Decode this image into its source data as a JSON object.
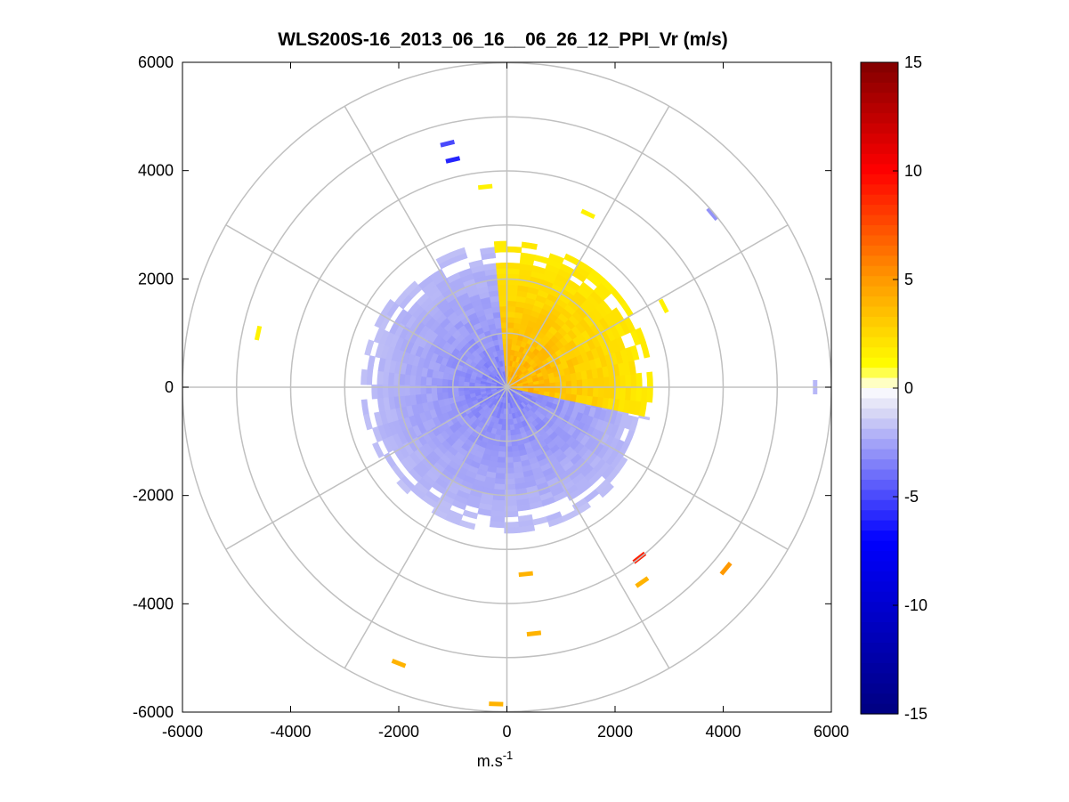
{
  "chart_data": {
    "type": "heatmap",
    "subtype": "polar-ppi",
    "title": "WLS200S-16_2013_06_16__06_26_12_PPI_Vr (m/s)",
    "xlabel": "m.s",
    "xlabel_superscript": "-1",
    "ylabel": "",
    "xlim": [
      -6000,
      6000
    ],
    "ylim": [
      -6000,
      6000
    ],
    "xticks": [
      "-6000",
      "-4000",
      "-2000",
      "0",
      "2000",
      "4000",
      "6000"
    ],
    "yticks": [
      "6000",
      "4000",
      "2000",
      "0",
      "-2000",
      "-4000",
      "-6000"
    ],
    "polar_grid": {
      "rings": [
        1000,
        2000,
        3000,
        4000,
        5000,
        6000
      ],
      "spokes_deg": [
        0,
        30,
        60,
        90,
        120,
        150,
        180,
        210,
        240,
        270,
        300,
        330
      ],
      "grid": true
    },
    "colorbar": {
      "min": -15,
      "max": 15,
      "ticks": [
        "15",
        "10",
        "5",
        "0",
        "-5",
        "-10",
        "-15"
      ],
      "colormap": "blue-white-yellow-red",
      "stops": [
        "#000080",
        "#0000ff",
        "#dcdcf5",
        "#ffffff",
        "#ffff00",
        "#ff9900",
        "#ff0000",
        "#800000"
      ]
    },
    "fields": {
      "negative_sector": {
        "theta_start_deg": 95,
        "theta_end_deg": 348,
        "r_min": 0,
        "r_max": 2700,
        "vr_min": -4,
        "vr_max": -1,
        "sign": "negative"
      },
      "positive_sector": {
        "theta_start_deg": 348,
        "theta_end_deg": 455,
        "r_min": 0,
        "r_max": 2700,
        "vr_min": 1,
        "vr_max": 5,
        "sign": "positive"
      }
    },
    "sparse_samples": [
      {
        "x": -1100,
        "y": 4500,
        "vr": -5
      },
      {
        "x": -1000,
        "y": 4200,
        "vr": -6
      },
      {
        "x": 3800,
        "y": 3200,
        "vr": -3
      },
      {
        "x": 5700,
        "y": 0,
        "vr": -2
      },
      {
        "x": 2450,
        "y": -3150,
        "vr": 9
      },
      {
        "x": 4050,
        "y": -3350,
        "vr": 5
      },
      {
        "x": 2500,
        "y": -3600,
        "vr": 4
      },
      {
        "x": -2000,
        "y": -5100,
        "vr": 4
      },
      {
        "x": -200,
        "y": -5850,
        "vr": 4
      },
      {
        "x": 500,
        "y": -4550,
        "vr": 4
      },
      {
        "x": 350,
        "y": -3450,
        "vr": 4
      },
      {
        "x": -4600,
        "y": 1000,
        "vr": 1.5
      },
      {
        "x": -400,
        "y": 3700,
        "vr": 1.5
      },
      {
        "x": 1500,
        "y": 3200,
        "vr": 1.5
      },
      {
        "x": 2900,
        "y": 1500,
        "vr": 1.5
      }
    ]
  }
}
